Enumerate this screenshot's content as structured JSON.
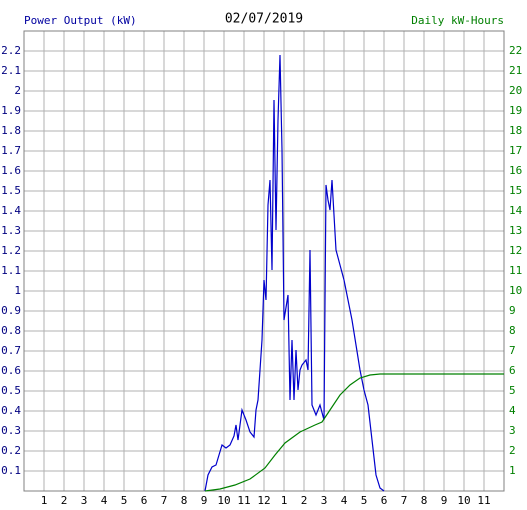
{
  "chart_data": {
    "type": "line",
    "title": "02/07/2019",
    "y_label": "Power Output (kW)",
    "y2_label": "Daily kW-Hours",
    "xlim": [
      0,
      24
    ],
    "xticks": [
      1,
      2,
      3,
      4,
      5,
      6,
      7,
      8,
      9,
      10,
      11,
      12,
      {
        "value": 13,
        "label": "1"
      },
      {
        "value": 14,
        "label": "2"
      },
      {
        "value": 15,
        "label": "3"
      },
      {
        "value": 16,
        "label": "4"
      },
      {
        "value": 17,
        "label": "5"
      },
      {
        "value": 18,
        "label": "6"
      },
      {
        "value": 19,
        "label": "7"
      },
      {
        "value": 20,
        "label": "8"
      },
      {
        "value": 21,
        "label": "9"
      },
      {
        "value": 22,
        "label": "10"
      },
      {
        "value": 23,
        "label": "11"
      }
    ],
    "ylim": [
      0,
      2.3
    ],
    "yticks": [
      0.1,
      0.2,
      0.3,
      0.4,
      0.5,
      0.6,
      0.7,
      0.8,
      0.9,
      1.0,
      1.1,
      1.2,
      1.3,
      1.4,
      1.5,
      1.6,
      1.7,
      1.8,
      1.9,
      2.0,
      2.1,
      2.2
    ],
    "y2lim": [
      0,
      23
    ],
    "y2ticks": [
      1,
      2,
      3,
      4,
      5,
      6,
      7,
      8,
      9,
      10,
      11,
      12,
      13,
      14,
      15,
      16,
      17,
      18,
      19,
      20,
      21,
      22
    ],
    "grid": true,
    "series": [
      {
        "name": "Power Output (kW)",
        "color": "#0000cc",
        "x": [
          9.05,
          9.2,
          9.4,
          9.6,
          9.75,
          9.9,
          10.1,
          10.3,
          10.5,
          10.6,
          10.7,
          10.9,
          11.1,
          11.3,
          11.5,
          11.6,
          11.7,
          11.9,
          12.0,
          12.1,
          12.2,
          12.3,
          12.4,
          12.5,
          12.6,
          12.7,
          12.8,
          12.9,
          13.0,
          13.2,
          13.3,
          13.4,
          13.5,
          13.6,
          13.7,
          13.8,
          13.9,
          14.1,
          14.2,
          14.3,
          14.4,
          14.6,
          14.8,
          15.0,
          15.1,
          15.2,
          15.3,
          15.4,
          15.5,
          15.6,
          15.8,
          16.0,
          16.2,
          16.4,
          16.6,
          16.8,
          17.0,
          17.2,
          17.4,
          17.6,
          17.8,
          18.0
        ],
        "values": [
          0,
          0.08,
          0.12,
          0.13,
          0.18,
          0.23,
          0.215,
          0.23,
          0.275,
          0.33,
          0.255,
          0.405,
          0.355,
          0.295,
          0.27,
          0.405,
          0.455,
          0.755,
          1.055,
          0.955,
          1.43,
          1.555,
          1.105,
          1.955,
          1.305,
          1.855,
          2.18,
          1.705,
          0.855,
          0.98,
          0.455,
          0.755,
          0.455,
          0.705,
          0.505,
          0.605,
          0.63,
          0.655,
          0.605,
          1.205,
          0.43,
          0.38,
          0.43,
          0.355,
          1.53,
          1.455,
          1.405,
          1.555,
          1.38,
          1.205,
          1.13,
          1.055,
          0.955,
          0.855,
          0.73,
          0.605,
          0.505,
          0.43,
          0.255,
          0.08,
          0.015,
          0
        ]
      },
      {
        "name": "Daily kW-Hours",
        "color": "#008000",
        "axis": "y2",
        "x": [
          9.05,
          9.8,
          10.55,
          11.3,
          12.05,
          12.55,
          13.05,
          13.8,
          14.55,
          14.9,
          15.3,
          15.8,
          16.3,
          16.8,
          17.3,
          17.8,
          24
        ],
        "values": [
          0,
          0.1,
          0.3,
          0.6,
          1.15,
          1.8,
          2.4,
          2.95,
          3.3,
          3.45,
          4.05,
          4.8,
          5.3,
          5.65,
          5.8,
          5.85,
          5.85
        ]
      }
    ]
  }
}
